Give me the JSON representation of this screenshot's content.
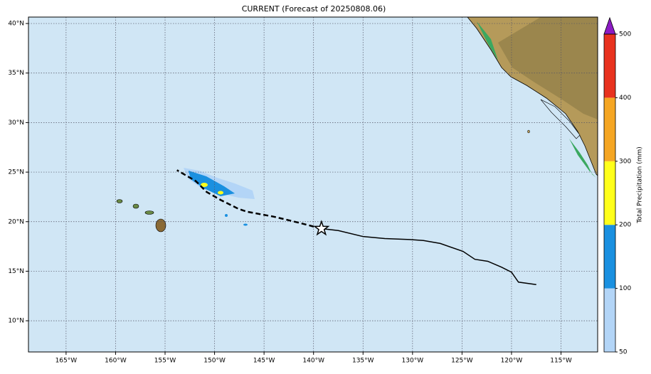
{
  "title": "CURRENT (Forecast of 20250808.06)",
  "map": {
    "xlim": [
      -168.8,
      -111.3
    ],
    "ylim": [
      6.85,
      40.65
    ],
    "xticks": [
      {
        "value": -165,
        "label": "165°W"
      },
      {
        "value": -160,
        "label": "160°W"
      },
      {
        "value": -155,
        "label": "155°W"
      },
      {
        "value": -150,
        "label": "150°W"
      },
      {
        "value": -145,
        "label": "145°W"
      },
      {
        "value": -140,
        "label": "140°W"
      },
      {
        "value": -135,
        "label": "135°W"
      },
      {
        "value": -130,
        "label": "130°W"
      },
      {
        "value": -125,
        "label": "125°W"
      },
      {
        "value": -120,
        "label": "120°W"
      },
      {
        "value": -115,
        "label": "115°W"
      }
    ],
    "yticks": [
      {
        "value": 10,
        "label": "10°N"
      },
      {
        "value": 15,
        "label": "15°N"
      },
      {
        "value": 20,
        "label": "20°N"
      },
      {
        "value": 25,
        "label": "25°N"
      },
      {
        "value": 30,
        "label": "30°N"
      },
      {
        "value": 35,
        "label": "35°N"
      },
      {
        "value": 40,
        "label": "40°N"
      }
    ],
    "grid": true,
    "track": [
      {
        "name": "Past track",
        "color": "#000000",
        "dashed": false,
        "lon": [
          -117.5,
          -119.3,
          -120.0,
          -121.0,
          -122.4,
          -123.7,
          -124.9,
          -127.2,
          -128.9,
          -130.3,
          -132.8,
          -135.0,
          -137.5,
          -139.2
        ],
        "lat": [
          13.65,
          13.9,
          14.9,
          15.4,
          16.0,
          16.2,
          17.0,
          17.8,
          18.1,
          18.2,
          18.3,
          18.5,
          19.1,
          19.3
        ]
      },
      {
        "name": "Forecast track",
        "color": "#000000",
        "dashed": true,
        "lon": [
          -139.2,
          -141.5,
          -144.0,
          -146.7,
          -147.6,
          -149.4,
          -150.8,
          -151.9,
          -153.8
        ],
        "lat": [
          19.3,
          19.9,
          20.5,
          21.0,
          21.3,
          22.2,
          23.0,
          24.1,
          25.2
        ]
      }
    ],
    "current_position": {
      "lon": -139.2,
      "lat": 19.3
    }
  },
  "colorbar": {
    "label": "Total Precipitation (mm)",
    "levels": [
      50,
      100,
      200,
      300,
      400,
      500
    ],
    "colors": [
      "#b3d5f7",
      "#1a90e0",
      "#ffff1a",
      "#f5a623",
      "#e8321e"
    ],
    "extend_color": "#8c1bc4"
  }
}
